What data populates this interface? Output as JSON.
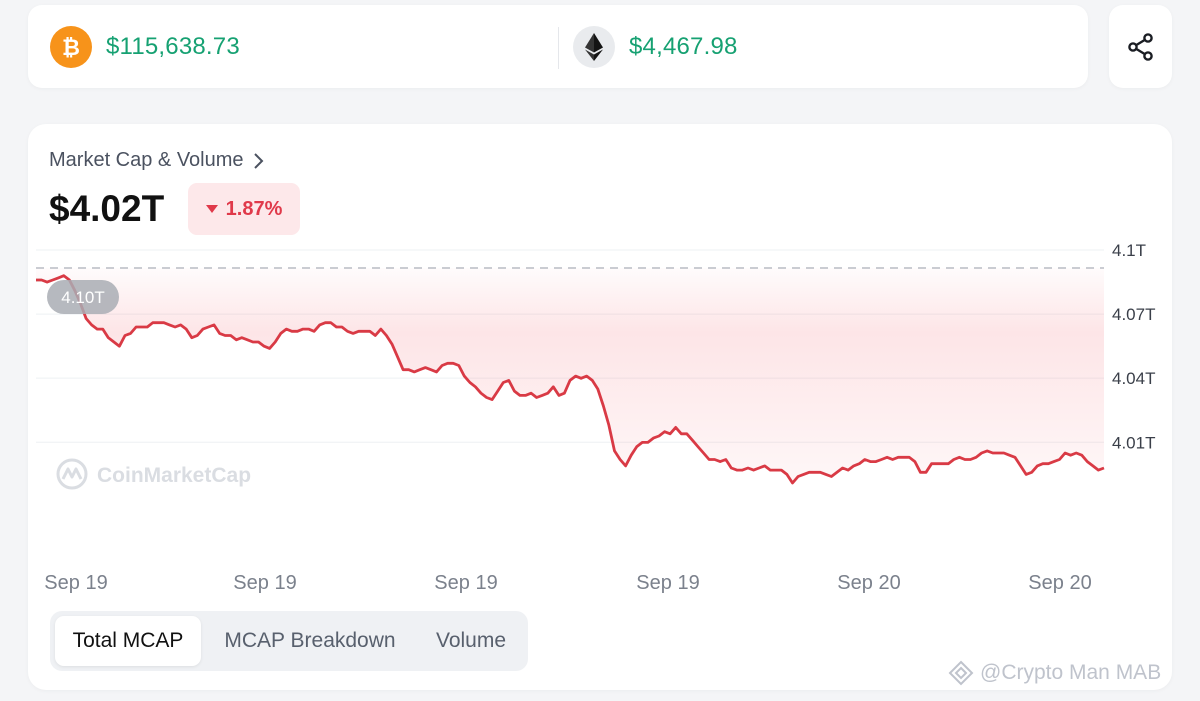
{
  "ticker": {
    "btc": {
      "icon": "bitcoin-icon",
      "price": "$115,638.73"
    },
    "eth": {
      "icon": "ethereum-icon",
      "price": "$4,467.98"
    }
  },
  "share": {
    "icon": "share-icon"
  },
  "panel": {
    "title": "Market Cap & Volume",
    "value": "$4.02T",
    "change": "1.87%",
    "change_direction": "down"
  },
  "chart_data": {
    "type": "area",
    "y_ticks": [
      "4.1T",
      "4.07T",
      "4.04T",
      "4.01T"
    ],
    "x_ticks": [
      "Sep 19",
      "Sep 19",
      "Sep 19",
      "Sep 19",
      "Sep 20",
      "Sep 20"
    ],
    "ylim": [
      3.99,
      4.1
    ],
    "reference_value": 4.1,
    "reference_label": "4.10T",
    "watermark": "CoinMarketCap",
    "line_color": "#d93a45",
    "start_color": "#16a172",
    "series": [
      {
        "values": [
          4.1,
          4.1,
          4.099,
          4.1,
          4.101,
          4.102,
          4.1,
          4.095,
          4.089,
          4.082,
          4.079,
          4.077,
          4.077,
          4.073,
          4.071,
          4.069,
          4.074,
          4.075,
          4.078,
          4.078,
          4.078,
          4.08,
          4.08,
          4.08,
          4.079,
          4.078,
          4.079,
          4.077,
          4.073,
          4.074,
          4.077,
          4.078,
          4.079,
          4.075,
          4.074,
          4.074,
          4.072,
          4.073,
          4.072,
          4.071,
          4.071,
          4.069,
          4.068,
          4.071,
          4.075,
          4.077,
          4.076,
          4.076,
          4.077,
          4.077,
          4.076,
          4.079,
          4.08,
          4.08,
          4.078,
          4.078,
          4.076,
          4.075,
          4.076,
          4.076,
          4.076,
          4.074,
          4.077,
          4.074,
          4.07,
          4.064,
          4.058,
          4.058,
          4.057,
          4.058,
          4.059,
          4.058,
          4.057,
          4.06,
          4.061,
          4.061,
          4.06,
          4.055,
          4.052,
          4.05,
          4.047,
          4.045,
          4.044,
          4.048,
          4.052,
          4.053,
          4.048,
          4.046,
          4.046,
          4.047,
          4.045,
          4.046,
          4.047,
          4.05,
          4.046,
          4.047,
          4.053,
          4.055,
          4.054,
          4.055,
          4.053,
          4.049,
          4.041,
          4.032,
          4.02,
          4.016,
          4.013,
          4.018,
          4.022,
          4.024,
          4.024,
          4.026,
          4.027,
          4.029,
          4.028,
          4.031,
          4.028,
          4.028,
          4.025,
          4.022,
          4.019,
          4.016,
          4.016,
          4.015,
          4.016,
          4.012,
          4.011,
          4.011,
          4.012,
          4.011,
          4.012,
          4.013,
          4.011,
          4.011,
          4.011,
          4.009,
          4.005,
          4.008,
          4.009,
          4.01,
          4.01,
          4.01,
          4.009,
          4.008,
          4.01,
          4.012,
          4.011,
          4.013,
          4.014,
          4.016,
          4.015,
          4.015,
          4.016,
          4.017,
          4.016,
          4.017,
          4.017,
          4.017,
          4.015,
          4.01,
          4.01,
          4.014,
          4.014,
          4.014,
          4.014,
          4.016,
          4.017,
          4.016,
          4.016,
          4.017,
          4.019,
          4.02,
          4.019,
          4.019,
          4.019,
          4.018,
          4.017,
          4.013,
          4.009,
          4.01,
          4.013,
          4.014,
          4.014,
          4.015,
          4.016,
          4.019,
          4.018,
          4.019,
          4.018,
          4.015,
          4.013,
          4.011,
          4.012
        ]
      }
    ]
  },
  "tabs": [
    {
      "label": "Total MCAP",
      "active": true
    },
    {
      "label": "MCAP Breakdown",
      "active": false
    },
    {
      "label": "Volume",
      "active": false
    }
  ],
  "watermark_text": "@Crypto Man MAB"
}
